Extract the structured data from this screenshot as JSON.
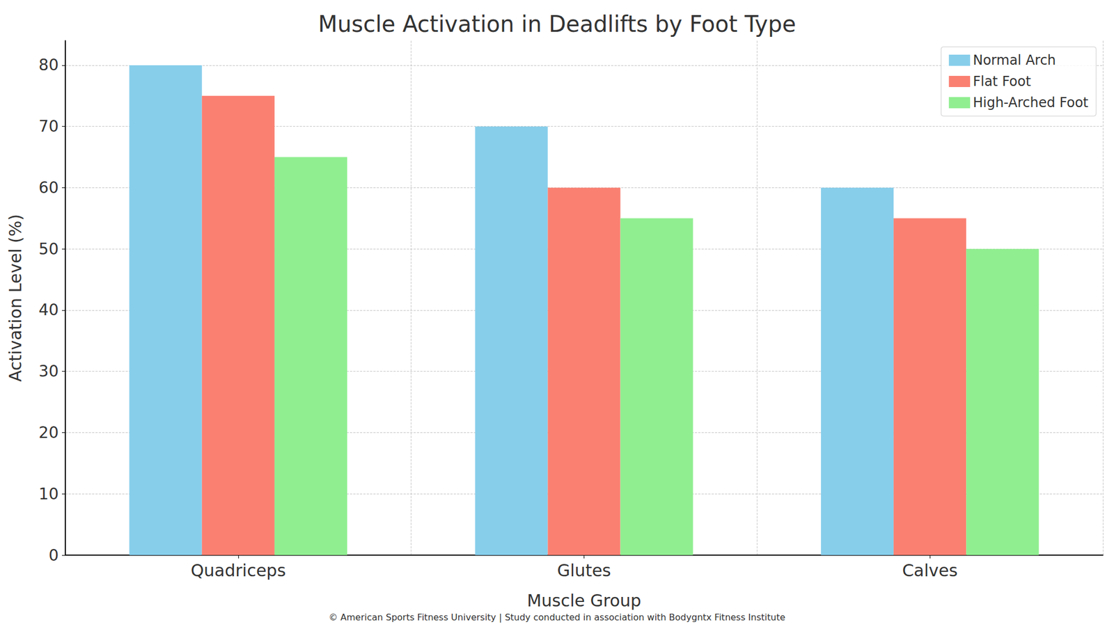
{
  "chart_data": {
    "type": "bar",
    "title": "Muscle Activation in Deadlifts by Foot Type",
    "x_label": "Muscle Group",
    "y_label": "Activation Level (%)",
    "annotations": [
      "© American Sports Fitness University | Study conducted in association with Bodygntx Fitness Institute"
    ],
    "categories": [
      "Quadriceps",
      "Glutes",
      "Calves"
    ],
    "series": [
      {
        "name": "Normal Arch",
        "color": "#87ceeb",
        "values": [
          80,
          70,
          60
        ]
      },
      {
        "name": "Flat Foot",
        "color": "#fa8072",
        "values": [
          75,
          60,
          55
        ]
      },
      {
        "name": "High-Arched Foot",
        "color": "#90ee90",
        "values": [
          65,
          55,
          50
        ]
      }
    ],
    "ylim": [
      0,
      84
    ],
    "yticks": [
      0,
      10,
      20,
      30,
      40,
      50,
      60,
      70,
      80
    ],
    "grid": true,
    "legend": "upper right"
  }
}
